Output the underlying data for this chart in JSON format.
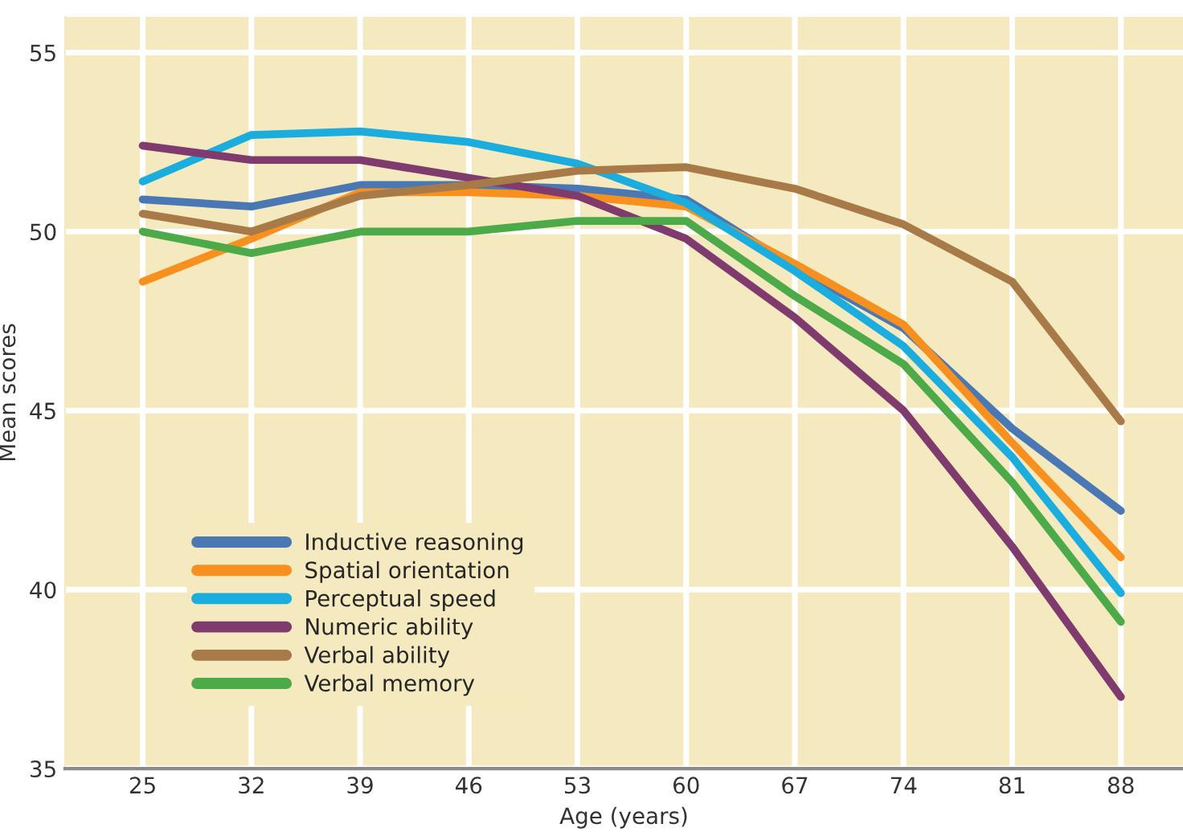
{
  "chart_data": {
    "type": "line",
    "xlabel": "Age (years)",
    "ylabel": "Mean scores",
    "x": [
      25,
      32,
      39,
      46,
      53,
      60,
      67,
      74,
      81,
      88
    ],
    "xlim": [
      20,
      92
    ],
    "xticks": [
      25,
      32,
      39,
      46,
      53,
      60,
      67,
      74,
      81,
      88
    ],
    "ylim": [
      35,
      56
    ],
    "yticks": [
      35,
      40,
      45,
      50,
      55
    ],
    "grid": true,
    "legend": "bottom left",
    "marker": "none",
    "line_style": "solid",
    "series": [
      {
        "name": "Inductive reasoning",
        "color": "#4a78b5",
        "values": [
          50.9,
          50.7,
          51.3,
          51.3,
          51.2,
          50.9,
          49.0,
          47.3,
          44.5,
          42.2
        ]
      },
      {
        "name": "Spatial orientation",
        "color": "#f7901e",
        "values": [
          48.6,
          49.8,
          51.1,
          51.1,
          51.0,
          50.7,
          49.1,
          47.4,
          44.1,
          40.9
        ]
      },
      {
        "name": "Perceptual speed",
        "color": "#1badde",
        "values": [
          51.4,
          52.7,
          52.8,
          52.5,
          51.9,
          50.8,
          48.9,
          46.8,
          43.7,
          39.9
        ]
      },
      {
        "name": "Numeric ability",
        "color": "#7f3b6e",
        "values": [
          52.4,
          52.0,
          52.0,
          51.5,
          51.0,
          49.8,
          47.6,
          45.0,
          41.2,
          37.0
        ]
      },
      {
        "name": "Verbal ability",
        "color": "#a87a47",
        "values": [
          50.5,
          50.0,
          51.0,
          51.3,
          51.7,
          51.8,
          51.2,
          50.2,
          48.6,
          44.7
        ]
      },
      {
        "name": "Verbal memory",
        "color": "#4daa48",
        "values": [
          50.0,
          49.4,
          50.0,
          50.0,
          50.3,
          50.3,
          48.2,
          46.3,
          43.0,
          39.1
        ]
      }
    ]
  }
}
